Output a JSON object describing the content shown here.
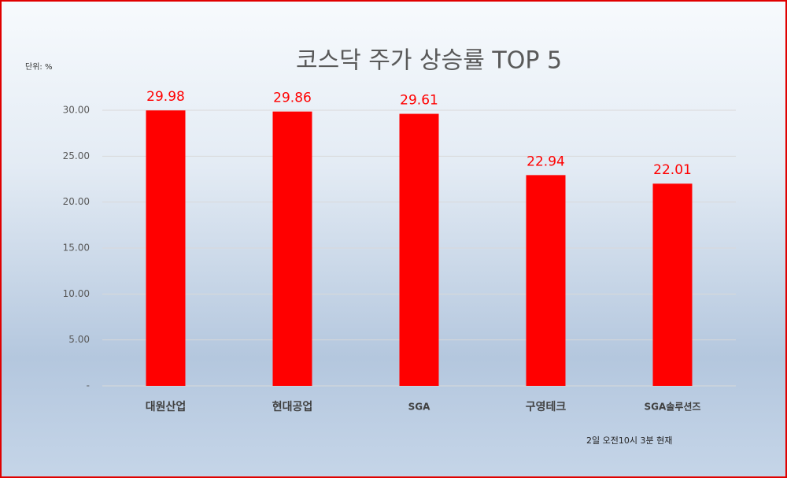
{
  "chart_data": {
    "type": "bar",
    "title": "코스닥 주가 상승률 TOP 5",
    "unit_label": "단위: %",
    "note": "2일 오전10시 3분 현재",
    "categories": [
      "대원산업",
      "현대공업",
      "SGA",
      "구영테크",
      "SGA솔루션즈"
    ],
    "values": [
      29.98,
      29.86,
      29.61,
      22.94,
      22.01
    ],
    "color": "#ff0000",
    "ylim": [
      0,
      30
    ],
    "yticks": [
      {
        "value": 0,
        "label": "-"
      },
      {
        "value": 5,
        "label": "5.00"
      },
      {
        "value": 10,
        "label": "10.00"
      },
      {
        "value": 15,
        "label": "15.00"
      },
      {
        "value": 20,
        "label": "20.00"
      },
      {
        "value": 25,
        "label": "25.00"
      },
      {
        "value": 30,
        "label": "30.00"
      }
    ],
    "grid": true
  }
}
